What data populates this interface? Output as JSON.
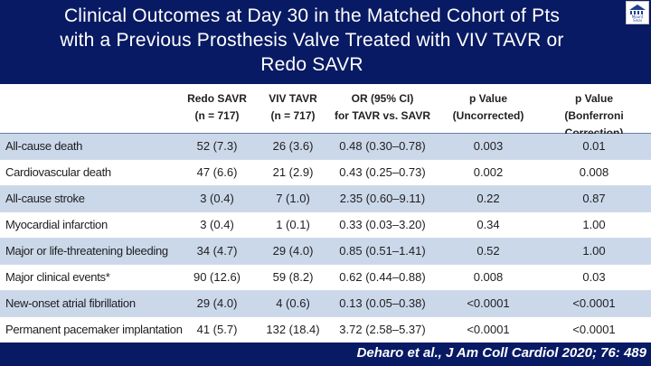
{
  "slide": {
    "title_line1": "Clinical Outcomes at Day 30 in the Matched Cohort of Pts",
    "title_line2": "with a Previous Prosthesis Valve Treated with VIV TAVR or",
    "title_line3": "Redo SAVR",
    "citation": "Deharo et al., J Am Coll Cardiol 2020; 76: 489",
    "logo_text": "Mount Sinai"
  },
  "colors": {
    "background": "#081a63",
    "row_alt": "#cbd8ea",
    "title_text": "#ffffff"
  },
  "table": {
    "headers": [
      {
        "line1": "Redo SAVR",
        "line2": "(n = 717)"
      },
      {
        "line1": "VIV TAVR",
        "line2": "(n = 717)"
      },
      {
        "line1": "OR (95% CI)",
        "line2": "for TAVR vs. SAVR"
      },
      {
        "line1": "p Value",
        "line2": "(Uncorrected)"
      },
      {
        "line1": "p Value",
        "line2": "(Bonferroni Correction)"
      }
    ],
    "rows": [
      {
        "label": "All-cause death",
        "redo_savr": "52 (7.3)",
        "viv_tavr": "26 (3.6)",
        "or_ci": "0.48 (0.30–0.78)",
        "p_uncorrected": "0.003",
        "p_bonferroni": "0.01"
      },
      {
        "label": "Cardiovascular death",
        "redo_savr": "47 (6.6)",
        "viv_tavr": "21 (2.9)",
        "or_ci": "0.43 (0.25–0.73)",
        "p_uncorrected": "0.002",
        "p_bonferroni": "0.008"
      },
      {
        "label": "All-cause stroke",
        "redo_savr": "3 (0.4)",
        "viv_tavr": "7 (1.0)",
        "or_ci": "2.35 (0.60–9.11)",
        "p_uncorrected": "0.22",
        "p_bonferroni": "0.87"
      },
      {
        "label": "Myocardial infarction",
        "redo_savr": "3 (0.4)",
        "viv_tavr": "1 (0.1)",
        "or_ci": "0.33 (0.03–3.20)",
        "p_uncorrected": "0.34",
        "p_bonferroni": "1.00"
      },
      {
        "label": "Major or life-threatening bleeding",
        "redo_savr": "34 (4.7)",
        "viv_tavr": "29 (4.0)",
        "or_ci": "0.85 (0.51–1.41)",
        "p_uncorrected": "0.52",
        "p_bonferroni": "1.00"
      },
      {
        "label": "Major clinical events*",
        "redo_savr": "90 (12.6)",
        "viv_tavr": "59 (8.2)",
        "or_ci": "0.62 (0.44–0.88)",
        "p_uncorrected": "0.008",
        "p_bonferroni": "0.03"
      },
      {
        "label": "New-onset atrial fibrillation",
        "redo_savr": "29 (4.0)",
        "viv_tavr": "4 (0.6)",
        "or_ci": "0.13 (0.05–0.38)",
        "p_uncorrected": "<0.0001",
        "p_bonferroni": "<0.0001"
      },
      {
        "label": "Permanent pacemaker implantation",
        "redo_savr": "41 (5.7)",
        "viv_tavr": "132 (18.4)",
        "or_ci": "3.72 (2.58–5.37)",
        "p_uncorrected": "<0.0001",
        "p_bonferroni": "<0.0001"
      }
    ]
  }
}
